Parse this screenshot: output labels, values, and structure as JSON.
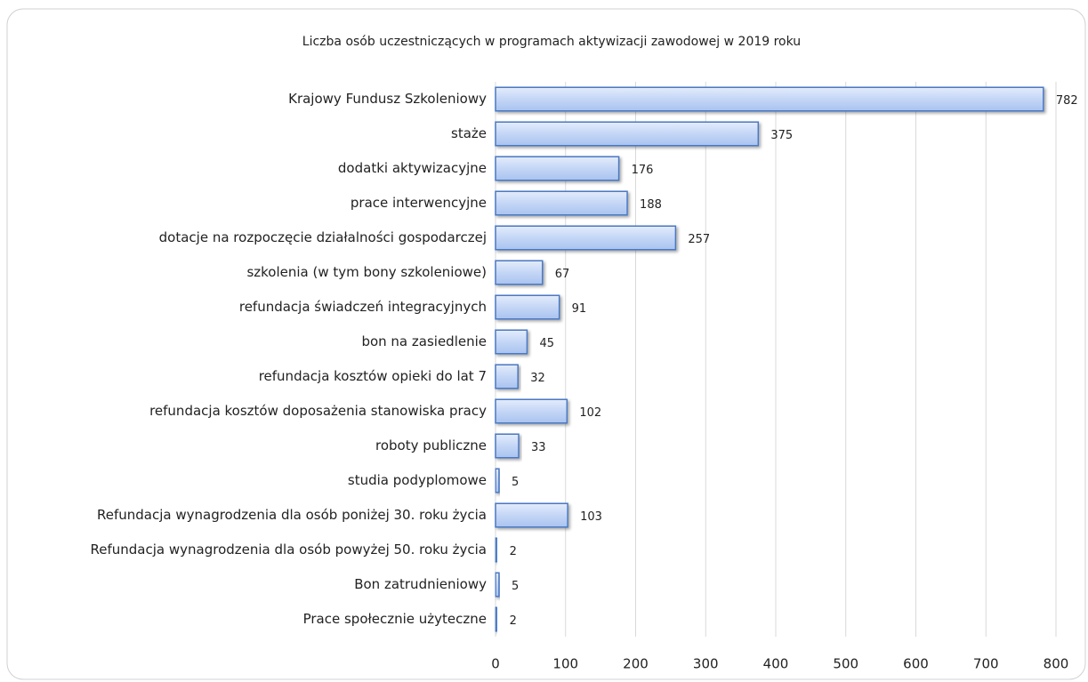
{
  "chart_data": {
    "type": "bar",
    "orientation": "horizontal",
    "title": "Liczba osób uczestniczących w programach aktywizacji zawodowej w 2019 roku",
    "categories": [
      "Krajowy Fundusz Szkoleniowy",
      "staże",
      "dodatki aktywizacyjne",
      "prace interwencyjne",
      "dotacje na rozpoczęcie działalności gospodarczej",
      "szkolenia (w tym bony szkoleniowe)",
      "refundacja świadczeń integracyjnych",
      "bon na zasiedlenie",
      "refundacja kosztów opieki do lat 7",
      "refundacja kosztów doposażenia stanowiska pracy",
      "roboty publiczne",
      "studia podyplomowe",
      "Refundacja wynagrodzenia dla osób poniżej 30. roku życia",
      "Refundacja wynagrodzenia dla osób powyżej 50. roku życia",
      "Bon zatrudnieniowy",
      "Prace społecznie użyteczne"
    ],
    "values": [
      782,
      375,
      176,
      188,
      257,
      67,
      91,
      45,
      32,
      102,
      33,
      5,
      103,
      2,
      5,
      2
    ],
    "color": "#4a78c2",
    "xlim": [
      0,
      800
    ],
    "xticks": [
      0,
      100,
      200,
      300,
      400,
      500,
      600,
      700,
      800
    ],
    "grid": true
  }
}
